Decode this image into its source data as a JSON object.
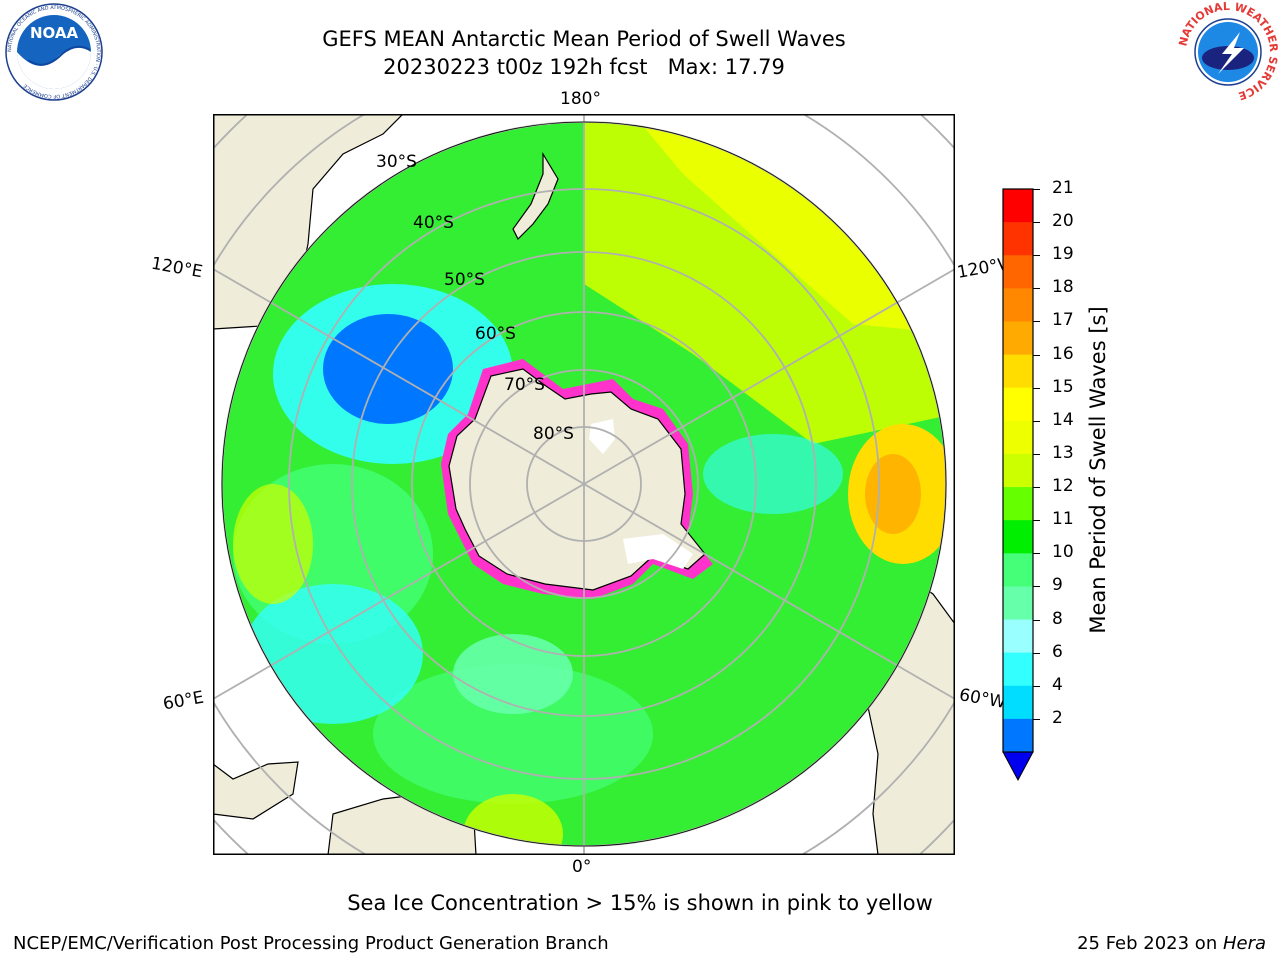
{
  "header": {
    "title_line1": "GEFS MEAN Antarctic Mean Period of Swell Waves",
    "title_line2": "20230223 t00z 192h fcst   Max: 17.79"
  },
  "logos": {
    "noaa_text": "NOAA",
    "noaa_ring_text": "NATIONAL OCEANIC AND ATMOSPHERIC ADMINISTRATION · U.S. DEPARTMENT OF COMMERCE",
    "nws_ring_text": "NATIONAL WEATHER SERVICE"
  },
  "map": {
    "longitude_labels": {
      "top": "180°",
      "bottom": "0°",
      "upper_left": "120°E",
      "upper_right": "120°W",
      "lower_left": "60°E",
      "lower_right": "60°W"
    },
    "latitude_labels": [
      "30°S",
      "40°S",
      "50°S",
      "60°S",
      "70°S",
      "80°S"
    ],
    "colors": {
      "land": "#efecd9",
      "ice_edge": "#ff33cc",
      "ocean_base": "#33ee33"
    }
  },
  "colorbar": {
    "title": "Mean Period of Swell Waves [s]",
    "ticks": [
      "21",
      "20",
      "19",
      "18",
      "17",
      "16",
      "15",
      "14",
      "13",
      "12",
      "11",
      "10",
      "9",
      "8",
      "6",
      "4",
      "2"
    ],
    "colors": [
      "#ff0000",
      "#ff3300",
      "#ff6600",
      "#ff8800",
      "#ffaa00",
      "#ffdd00",
      "#ffff00",
      "#eeff00",
      "#ccff00",
      "#66ff00",
      "#00ee00",
      "#44ff77",
      "#66ffaa",
      "#99ffff",
      "#33ffff",
      "#00ddff",
      "#0077ff"
    ],
    "extend_color": "#0000ee"
  },
  "footer": {
    "subtitle": "Sea Ice Concentration > 15% is shown in pink to yellow",
    "left": "NCEP/EMC/Verification Post Processing Product Generation Branch",
    "right_date": "25 Feb 2023 on ",
    "right_host": "Hera"
  }
}
